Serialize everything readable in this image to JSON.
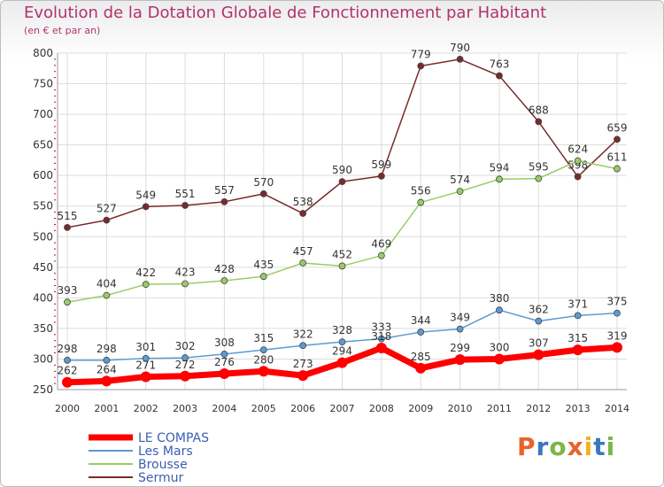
{
  "title": "Evolution de la Dotation Globale de Fonctionnement par Habitant",
  "subtitle": "(en € et par an)",
  "logo": {
    "text": "Proxiti",
    "colors": [
      "#e8632b",
      "#3a78c2",
      "#7ab648",
      "#e8632b",
      "#f2b21f",
      "#3a78c2",
      "#7ab648"
    ]
  },
  "chart_data": {
    "type": "line",
    "title": "Evolution de la Dotation Globale de Fonctionnement par Habitant",
    "subtitle": "(en € et par an)",
    "xlabel": "",
    "ylabel": "",
    "x": [
      "2000",
      "2001",
      "2002",
      "2003",
      "2004",
      "2005",
      "2006",
      "2007",
      "2008",
      "2009",
      "2010",
      "2011",
      "2012",
      "2013",
      "2014"
    ],
    "ylim": [
      250,
      800
    ],
    "yticks": [
      250,
      300,
      350,
      400,
      450,
      500,
      550,
      600,
      650,
      700,
      750,
      800
    ],
    "grid": true,
    "legend_position": "bottom-left",
    "series": [
      {
        "name": "LE COMPAS",
        "color": "#ff0000",
        "values": [
          262,
          264,
          271,
          272,
          276,
          280,
          273,
          294,
          318,
          285,
          299,
          300,
          307,
          315,
          319
        ]
      },
      {
        "name": "Les Mars",
        "color": "#5b9bd5",
        "values": [
          298,
          298,
          301,
          302,
          308,
          315,
          322,
          328,
          333,
          344,
          349,
          380,
          362,
          371,
          375
        ]
      },
      {
        "name": "Brousse",
        "color": "#99cc66",
        "values": [
          393,
          404,
          422,
          423,
          428,
          435,
          457,
          452,
          469,
          556,
          574,
          594,
          595,
          624,
          611
        ]
      },
      {
        "name": "Sermur",
        "color": "#7a2a2a",
        "values": [
          515,
          527,
          549,
          551,
          557,
          570,
          538,
          590,
          599,
          779,
          790,
          763,
          688,
          598,
          659
        ]
      }
    ]
  }
}
